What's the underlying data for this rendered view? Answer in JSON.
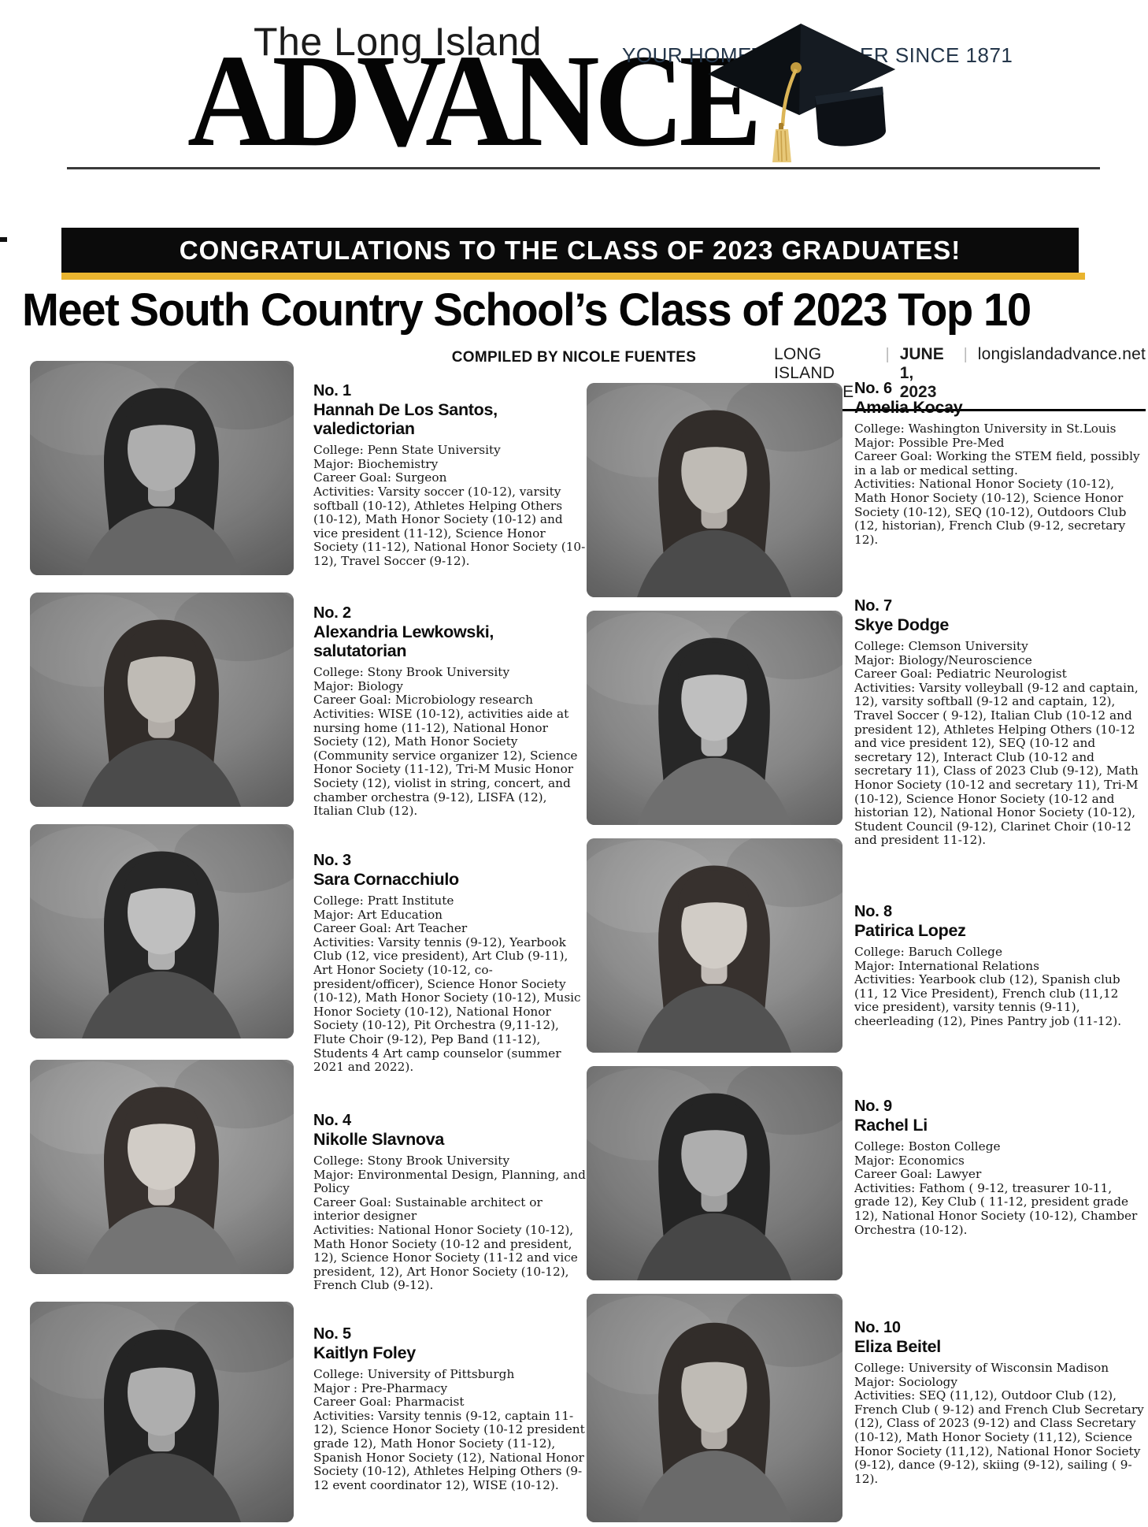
{
  "masthead": {
    "kicker": "The Long Island",
    "title": "ADVANCE",
    "tagline_left": "YOUR HOMET",
    "tagline_right": "ER SINCE 1871",
    "cap_icon": "graduation-cap"
  },
  "banner": {
    "text": "CONGRATULATIONS TO THE CLASS OF 2023 GRADUATES!",
    "black": "#0B0B0B",
    "gold": "#E9B42F"
  },
  "headline": "Meet South Country School’s Class of 2023 Top 10",
  "byline": "COMPILED BY NICOLE FUENTES",
  "dateline": {
    "paper": "LONG ISLAND ADVANCE",
    "separator": "|",
    "date": "JUNE 1, 2023",
    "website": "longislandadvance.net"
  },
  "students": [
    {
      "rank": "No. 1",
      "name": "Hannah De Los Santos,",
      "title": "valedictorian",
      "details": [
        "College: Penn State University",
        "Major: Biochemistry",
        "Career Goal: Surgeon",
        "Activities: Varsity soccer (10-12), varsity softball (10-12), Athletes Helping Others (10-12), Math Honor Society (10-12) and vice president (11-12), Science Honor Society (11-12), National Honor Society (10-12), Travel Soccer (9-12)."
      ]
    },
    {
      "rank": "No. 2",
      "name": "Alexandria Lewkowski,",
      "title": "salutatorian",
      "details": [
        "College: Stony Brook University",
        "Major: Biology",
        "Career Goal: Microbiology research",
        "Activities: WISE (10-12), activities aide at nursing home (11-12), National Honor Society (12), Math Honor Society (Community service organizer 12), Science Honor Society (11-12), Tri-M Music Honor Society (12), violist in string, concert, and chamber orchestra (9-12), LISFA (12), Italian Club (12)."
      ]
    },
    {
      "rank": "No. 3",
      "name": "Sara Cornacchiulo",
      "details": [
        "College: Pratt Institute",
        "Major: Art Education",
        "Career Goal: Art Teacher",
        "Activities: Varsity tennis (9-12), Yearbook Club (12, vice president), Art Club (9-11), Art Honor Society (10-12, co-president/officer), Science Honor Society (10-12), Math Honor Society (10-12), Music Honor Society (10-12), National Honor Society (10-12), Pit Orchestra (9,11-12), Flute Choir (9-12), Pep Band (11-12), Students 4 Art camp counselor (summer 2021 and 2022)."
      ]
    },
    {
      "rank": "No. 4",
      "name": "Nikolle Slavnova",
      "details": [
        "College: Stony Brook University",
        "Major: Environmental Design, Planning, and Policy",
        "Career Goal: Sustainable architect or interior designer",
        "Activities: National Honor Society (10-12), Math Honor Society (10-12 and president, 12), Science Honor Society (11-12 and vice president, 12), Art Honor Society (10-12), French Club (9-12)."
      ]
    },
    {
      "rank": "No. 5",
      "name": "Kaitlyn Foley",
      "details": [
        "College: University of Pittsburgh",
        "Major : Pre-Pharmacy",
        "Career Goal: Pharmacist",
        "Activities: Varsity tennis (9-12, captain 11-12), Science Honor Society (10-12 president grade 12), Math Honor Society (11-12), Spanish Honor Society (12), National Honor Society (10-12), Athletes Helping Others (9-12 event coordinator 12), WISE (10-12)."
      ]
    },
    {
      "rank": "No. 6",
      "name": "Amelia Kocay",
      "details": [
        "College: Washington University in St.Louis",
        "Major: Possible Pre-Med",
        "Career Goal: Working the STEM field, possibly in a lab or medical setting.",
        "Activities: National Honor Society (10-12), Math Honor Society (10-12), Science Honor Society (10-12), SEQ (10-12), Outdoors Club (12, historian), French Club (9-12, secretary 12)."
      ]
    },
    {
      "rank": "No. 7",
      "name": "Skye Dodge",
      "details": [
        "College: Clemson University",
        "Major: Biology/Neuroscience",
        "Career Goal: Pediatric Neurologist",
        "Activities: Varsity volleyball (9-12 and captain, 12), varsity softball (9-12 and captain, 12), Travel Soccer ( 9-12), Italian Club (10-12 and president 12), Athletes Helping Others (10-12 and vice president 12), SEQ (10-12 and secretary 12), Interact Club (10-12 and secretary 11), Class of 2023 Club (9-12), Math Honor Society (10-12 and secretary 11), Tri-M (10-12), Science Honor Society (10-12 and historian 12), National Honor Society (10-12), Student Council (9-12), Clarinet Choir (10-12 and president 11-12)."
      ]
    },
    {
      "rank": "No. 8",
      "name": "Patirica Lopez",
      "details": [
        "College: Baruch College",
        "Major: International Relations",
        "Activities: Yearbook club (12), Spanish club (11, 12 Vice President), French club (11,12 vice president), varsity tennis (9-11), cheerleading (12), Pines Pantry job (11-12)."
      ]
    },
    {
      "rank": "No. 9",
      "name": "Rachel Li",
      "details": [
        "College: Boston College",
        "Major: Economics",
        "Career Goal: Lawyer",
        "Activities: Fathom ( 9-12, treasurer 10-11, grade 12), Key Club ( 11-12, president grade 12), National Honor Society (10-12), Chamber Orchestra (10-12)."
      ]
    },
    {
      "rank": "No. 10",
      "name": "Eliza Beitel",
      "details": [
        "College: University of Wisconsin Madison",
        "Major: Sociology",
        "Activities: SEQ (11,12), Outdoor Club (12), French Club ( 9-12) and French Club Secretary (12), Class of 2023 (9-12) and Class Secretary (10-12), Math Honor Society (11,12), Science Honor Society (11,12), National Honor Society (9-12), dance (9-12), skiing (9-12), sailing ( 9-12)."
      ]
    }
  ]
}
